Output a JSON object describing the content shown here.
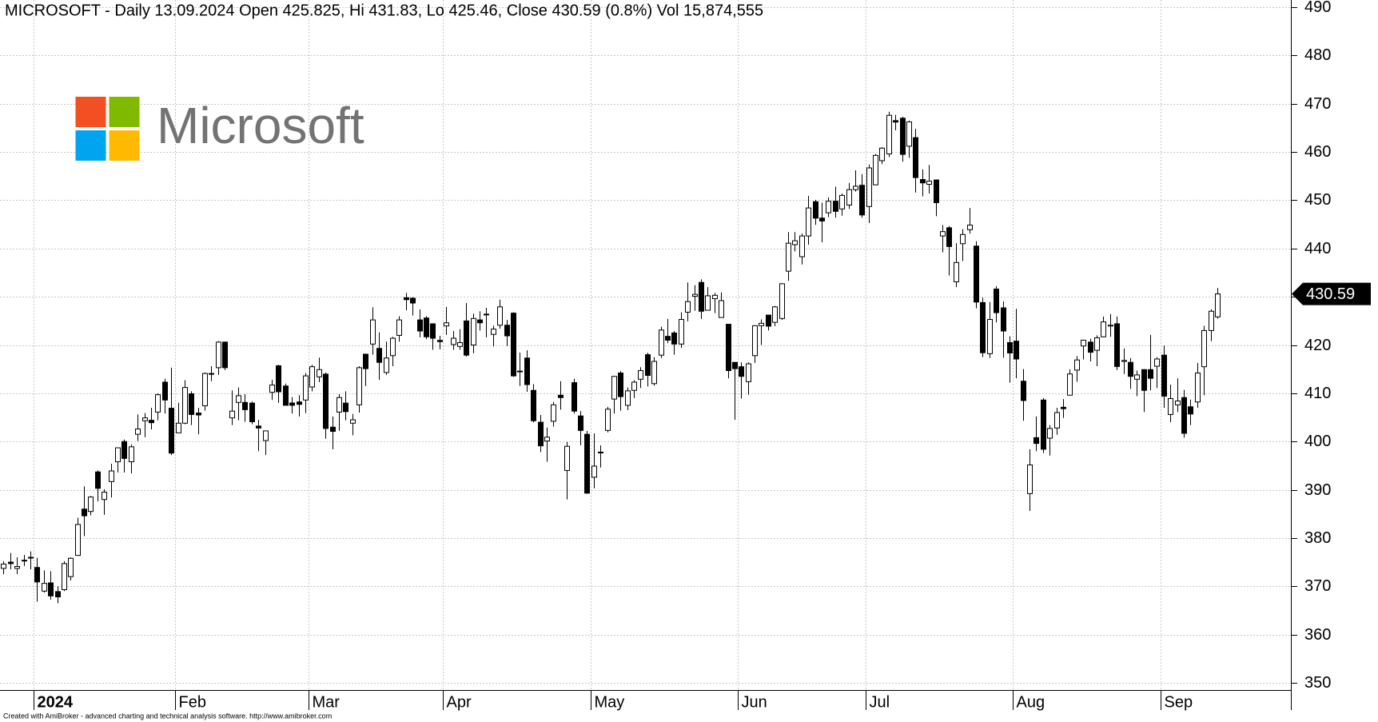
{
  "chart_data": {
    "type": "candlestick",
    "title": "MICROSOFT - Daily 13.09.2024 Open 425.825, Hi 431.83, Lo 425.46, Close 430.59 (0.8%) Vol 15,874,555",
    "logo_text": "Microsoft",
    "footer": "Created with AmiBroker - advanced charting and technical analysis software. http://www.amibroker.com",
    "last_price": 430.59,
    "up_color": "#ffffff",
    "down_color": "#000000",
    "grid": true,
    "ylim": [
      348.5,
      491.5
    ],
    "yticks": [
      350,
      360,
      370,
      380,
      390,
      400,
      410,
      420,
      430,
      440,
      450,
      460,
      470,
      480,
      490
    ],
    "categories": [
      null,
      null,
      null,
      null,
      null,
      "2024",
      null,
      null,
      null,
      null,
      null,
      null,
      null,
      null,
      null,
      null,
      null,
      null,
      null,
      null,
      null,
      null,
      null,
      null,
      null,
      null,
      "Feb",
      null,
      null,
      null,
      null,
      null,
      null,
      null,
      null,
      null,
      null,
      null,
      null,
      null,
      null,
      null,
      null,
      null,
      null,
      null,
      "Mar",
      null,
      null,
      null,
      null,
      null,
      null,
      null,
      null,
      null,
      null,
      null,
      null,
      null,
      null,
      null,
      null,
      null,
      null,
      null,
      "Apr",
      null,
      null,
      null,
      null,
      null,
      null,
      null,
      null,
      null,
      null,
      null,
      null,
      null,
      null,
      null,
      null,
      null,
      null,
      null,
      null,
      null,
      "May",
      null,
      null,
      null,
      null,
      null,
      null,
      null,
      null,
      null,
      null,
      null,
      null,
      null,
      null,
      null,
      null,
      null,
      null,
      null,
      null,
      null,
      "Jun",
      null,
      null,
      null,
      null,
      null,
      null,
      null,
      null,
      null,
      null,
      null,
      null,
      null,
      null,
      null,
      null,
      null,
      null,
      "Jul",
      null,
      null,
      null,
      null,
      null,
      null,
      null,
      null,
      null,
      null,
      null,
      null,
      null,
      null,
      null,
      null,
      null,
      null,
      null,
      null,
      null,
      "Aug",
      null,
      null,
      null,
      null,
      null,
      null,
      null,
      null,
      null,
      null,
      null,
      null,
      null,
      null,
      null,
      null,
      null,
      null,
      null,
      null,
      null,
      "Sep",
      null,
      null,
      null,
      null,
      null,
      null,
      null,
      null
    ],
    "candles": [
      [
        373.7,
        375.2,
        372.5,
        374.6
      ],
      [
        375.0,
        376.9,
        373.5,
        374.7
      ],
      [
        373.7,
        376.0,
        372.5,
        374.1
      ],
      [
        375.4,
        376.5,
        374.2,
        375.3
      ],
      [
        376.0,
        377.2,
        373.5,
        376.0
      ],
      [
        373.9,
        375.9,
        366.8,
        370.9
      ],
      [
        369.0,
        373.3,
        368.7,
        370.6
      ],
      [
        370.7,
        373.1,
        367.2,
        368.0
      ],
      [
        368.9,
        370.0,
        366.5,
        367.8
      ],
      [
        369.3,
        375.2,
        369.0,
        374.7
      ],
      [
        372.0,
        375.99,
        371.2,
        375.8
      ],
      [
        376.4,
        384.2,
        376.3,
        382.8
      ],
      [
        386.0,
        390.7,
        380.4,
        384.6
      ],
      [
        385.5,
        388.7,
        384.7,
        388.5
      ],
      [
        393.7,
        394.0,
        387.6,
        390.3
      ],
      [
        387.98,
        390.1,
        384.8,
        389.5
      ],
      [
        391.7,
        395.4,
        388.4,
        393.9
      ],
      [
        395.8,
        398.7,
        393.6,
        398.7
      ],
      [
        400.0,
        400.4,
        393.6,
        396.5
      ],
      [
        395.8,
        399.4,
        393.4,
        398.9
      ],
      [
        401.5,
        405.6,
        400.1,
        402.6
      ],
      [
        404.3,
        405.9,
        400.9,
        404.9
      ],
      [
        404.4,
        407.0,
        402.5,
        403.9
      ],
      [
        406.1,
        410.0,
        404.4,
        409.7
      ],
      [
        412.3,
        413.0,
        405.8,
        408.6
      ],
      [
        406.9,
        415.3,
        397.2,
        397.6
      ],
      [
        401.8,
        408.0,
        401.8,
        403.8
      ],
      [
        403.8,
        412.7,
        403.6,
        411.2
      ],
      [
        409.9,
        410.4,
        403.4,
        405.6
      ],
      [
        405.9,
        407.0,
        401.5,
        405.5
      ],
      [
        407.4,
        414.3,
        406.4,
        414.1
      ],
      [
        414.0,
        415.6,
        412.5,
        414.1
      ],
      [
        415.3,
        420.8,
        413.8,
        420.6
      ],
      [
        420.6,
        420.7,
        414.8,
        415.3
      ],
      [
        404.9,
        410.6,
        403.4,
        406.3
      ],
      [
        408.1,
        411.2,
        404.4,
        409.5
      ],
      [
        408.1,
        409.8,
        404.1,
        406.6
      ],
      [
        407.96,
        408.3,
        403.6,
        404.1
      ],
      [
        403.2,
        404.5,
        398.0,
        402.8
      ],
      [
        400.2,
        402.3,
        397.2,
        402.2
      ],
      [
        410.2,
        412.8,
        408.6,
        411.7
      ],
      [
        415.7,
        415.9,
        408.0,
        410.3
      ],
      [
        411.5,
        412.0,
        407.5,
        407.5
      ],
      [
        407.99,
        409.2,
        405.8,
        407.5
      ],
      [
        408.2,
        409.6,
        405.2,
        407.7
      ],
      [
        408.6,
        414.2,
        405.9,
        413.6
      ],
      [
        411.3,
        415.9,
        410.4,
        415.5
      ],
      [
        413.4,
        417.4,
        412.3,
        414.9
      ],
      [
        413.96,
        414.3,
        400.6,
        402.7
      ],
      [
        402.97,
        405.2,
        398.4,
        402.1
      ],
      [
        406.1,
        409.8,
        402.2,
        409.1
      ],
      [
        407.96,
        410.4,
        404.4,
        406.2
      ],
      [
        403.8,
        405.7,
        401.3,
        404.5
      ],
      [
        407.6,
        415.6,
        406.0,
        415.3
      ],
      [
        418.1,
        418.2,
        411.5,
        415.1
      ],
      [
        420.2,
        427.8,
        417.99,
        425.2
      ],
      [
        419.3,
        422.6,
        412.8,
        416.4
      ],
      [
        414.3,
        420.7,
        413.8,
        417.3
      ],
      [
        417.8,
        421.7,
        415.6,
        421.4
      ],
      [
        422.0,
        425.96,
        420.7,
        425.2
      ],
      [
        429.8,
        430.8,
        427.2,
        429.4
      ],
      [
        429.7,
        429.9,
        426.1,
        428.7
      ],
      [
        425.2,
        427.4,
        421.6,
        422.9
      ],
      [
        425.6,
        425.99,
        421.2,
        421.7
      ],
      [
        424.4,
        424.45,
        419.0,
        421.4
      ],
      [
        420.96,
        421.9,
        419.1,
        420.7
      ],
      [
        423.95,
        427.9,
        422.1,
        424.6
      ],
      [
        420.1,
        422.9,
        419.0,
        421.4
      ],
      [
        419.7,
        423.3,
        419.0,
        420.5
      ],
      [
        424.99,
        428.7,
        417.6,
        417.9
      ],
      [
        420.0,
        426.5,
        418.3,
        425.5
      ],
      [
        425.2,
        427.0,
        423.0,
        424.6
      ],
      [
        426.4,
        427.7,
        421.6,
        426.3
      ],
      [
        422.2,
        424.0,
        419.7,
        423.3
      ],
      [
        424.1,
        429.4,
        423.4,
        427.9
      ],
      [
        424.1,
        425.2,
        419.8,
        421.9
      ],
      [
        426.6,
        426.8,
        413.4,
        413.6
      ],
      [
        414.6,
        418.4,
        411.5,
        414.6
      ],
      [
        417.3,
        418.9,
        410.3,
        411.8
      ],
      [
        410.6,
        411.9,
        403.95,
        404.3
      ],
      [
        404.0,
        405.5,
        397.8,
        399.1
      ],
      [
        400.1,
        402.9,
        395.8,
        400.9
      ],
      [
        404.2,
        408.2,
        403.1,
        407.6
      ],
      [
        409.6,
        412.5,
        406.6,
        409.1
      ],
      [
        394.0,
        399.9,
        388.0,
        399.0
      ],
      [
        412.2,
        413.0,
        405.8,
        406.3
      ],
      [
        405.3,
        406.3,
        399.2,
        402.3
      ],
      [
        401.5,
        402.2,
        389.2,
        389.3
      ],
      [
        392.6,
        401.7,
        390.3,
        394.9
      ],
      [
        397.7,
        399.2,
        394.6,
        397.8
      ],
      [
        402.3,
        407.2,
        401.9,
        406.7
      ],
      [
        408.8,
        413.6,
        405.8,
        413.5
      ],
      [
        414.2,
        414.6,
        406.4,
        409.3
      ],
      [
        407.5,
        411.2,
        406.5,
        410.5
      ],
      [
        410.6,
        412.7,
        409.0,
        412.3
      ],
      [
        412.9,
        415.4,
        411.1,
        414.7
      ],
      [
        418.0,
        418.4,
        411.4,
        413.7
      ],
      [
        412.0,
        417.5,
        411.6,
        416.6
      ],
      [
        417.9,
        423.8,
        417.3,
        423.1
      ],
      [
        421.8,
        425.4,
        420.4,
        421.0
      ],
      [
        422.5,
        422.9,
        418.0,
        420.2
      ],
      [
        420.2,
        426.8,
        419.4,
        425.3
      ],
      [
        426.8,
        432.97,
        424.9,
        429.0
      ],
      [
        430.1,
        432.4,
        427.1,
        430.5
      ],
      [
        432.97,
        433.6,
        425.4,
        427.0
      ],
      [
        427.2,
        432.0,
        427.2,
        430.2
      ],
      [
        429.6,
        430.8,
        426.6,
        430.3
      ],
      [
        425.7,
        430.9,
        425.7,
        429.2
      ],
      [
        424.3,
        424.3,
        413.1,
        414.7
      ],
      [
        416.4,
        416.4,
        404.5,
        415.1
      ],
      [
        415.5,
        416.4,
        408.9,
        413.5
      ],
      [
        412.4,
        416.4,
        409.7,
        416.1
      ],
      [
        417.8,
        424.1,
        416.3,
        424.0
      ],
      [
        424.0,
        425.3,
        419.99,
        424.5
      ],
      [
        426.2,
        426.3,
        423.0,
        423.9
      ],
      [
        424.7,
        428.1,
        423.9,
        427.9
      ],
      [
        425.5,
        432.8,
        425.2,
        432.7
      ],
      [
        435.3,
        443.4,
        433.3,
        441.1
      ],
      [
        440.8,
        443.4,
        439.4,
        441.6
      ],
      [
        438.3,
        443.1,
        436.7,
        442.6
      ],
      [
        442.6,
        450.9,
        440.8,
        448.4
      ],
      [
        449.7,
        450.1,
        444.9,
        446.3
      ],
      [
        446.3,
        449.5,
        441.3,
        445.7
      ],
      [
        447.4,
        450.6,
        446.5,
        449.8
      ],
      [
        449.8,
        452.8,
        446.4,
        447.7
      ],
      [
        448.2,
        451.4,
        446.8,
        451.0
      ],
      [
        449.0,
        453.6,
        448.2,
        452.2
      ],
      [
        452.2,
        456.2,
        451.8,
        452.9
      ],
      [
        453.1,
        455.4,
        446.4,
        446.95
      ],
      [
        448.7,
        457.4,
        445.3,
        456.7
      ],
      [
        453.2,
        459.6,
        453.1,
        459.3
      ],
      [
        458.2,
        461.0,
        457.5,
        460.8
      ],
      [
        459.6,
        468.35,
        458.97,
        467.6
      ],
      [
        466.5,
        467.7,
        464.5,
        466.2
      ],
      [
        467.0,
        467.3,
        458.0,
        459.5
      ],
      [
        461.2,
        466.5,
        458.8,
        466.25
      ],
      [
        462.98,
        464.8,
        451.6,
        454.7
      ],
      [
        454.3,
        456.4,
        450.8,
        453.6
      ],
      [
        453.3,
        457.3,
        451.4,
        453.96
      ],
      [
        454.2,
        454.3,
        446.7,
        449.5
      ],
      [
        442.6,
        444.85,
        439.2,
        443.5
      ],
      [
        444.3,
        444.65,
        434.4,
        440.4
      ],
      [
        433.1,
        441.1,
        432.0,
        437.1
      ],
      [
        441.0,
        444.0,
        437.4,
        442.9
      ],
      [
        443.9,
        448.4,
        443.1,
        444.85
      ],
      [
        440.5,
        441.5,
        427.6,
        428.9
      ],
      [
        428.8,
        429.8,
        417.5,
        418.4
      ],
      [
        418.2,
        428.9,
        417.3,
        425.3
      ],
      [
        431.6,
        432.2,
        424.7,
        426.7
      ],
      [
        427.7,
        429.0,
        417.4,
        422.9
      ],
      [
        420.5,
        421.8,
        412.2,
        418.35
      ],
      [
        420.8,
        427.5,
        413.1,
        417.1
      ],
      [
        412.5,
        415.0,
        404.3,
        408.5
      ],
      [
        389.2,
        398.4,
        385.6,
        395.15
      ],
      [
        400.8,
        405.2,
        398.0,
        399.6
      ],
      [
        408.6,
        408.99,
        397.6,
        398.4
      ],
      [
        400.7,
        403.4,
        397.1,
        402.7
      ],
      [
        402.8,
        407.0,
        401.4,
        406.0
      ],
      [
        407.1,
        408.8,
        404.9,
        406.8
      ],
      [
        409.6,
        414.95,
        409.6,
        414.0
      ],
      [
        414.8,
        417.7,
        412.4,
        416.9
      ],
      [
        419.8,
        421.1,
        417.0,
        421.0
      ],
      [
        420.6,
        421.3,
        416.6,
        418.5
      ],
      [
        418.9,
        422.0,
        415.6,
        421.5
      ],
      [
        421.7,
        425.9,
        421.6,
        424.8
      ],
      [
        424.1,
        426.4,
        421.7,
        424.1
      ],
      [
        424.4,
        425.9,
        414.8,
        415.55
      ],
      [
        416.6,
        419.3,
        414.0,
        416.8
      ],
      [
        416.4,
        417.3,
        410.9,
        413.5
      ],
      [
        412.9,
        414.7,
        409.4,
        413.8
      ],
      [
        414.9,
        415.0,
        406.1,
        410.6
      ],
      [
        414.9,
        422.1,
        410.6,
        413.1
      ],
      [
        415.6,
        417.5,
        411.1,
        417.1
      ],
      [
        417.9,
        419.9,
        407.0,
        409.4
      ],
      [
        405.6,
        411.8,
        404.0,
        408.9
      ],
      [
        407.6,
        413.1,
        406.1,
        408.4
      ],
      [
        409.1,
        410.7,
        400.8,
        401.7
      ],
      [
        407.2,
        408.7,
        403.4,
        405.7
      ],
      [
        408.2,
        416.3,
        407.0,
        414.2
      ],
      [
        415.5,
        423.99,
        409.6,
        423.0
      ],
      [
        423.0,
        427.4,
        420.8,
        427.0
      ],
      [
        425.825,
        431.83,
        425.46,
        430.59
      ]
    ]
  }
}
